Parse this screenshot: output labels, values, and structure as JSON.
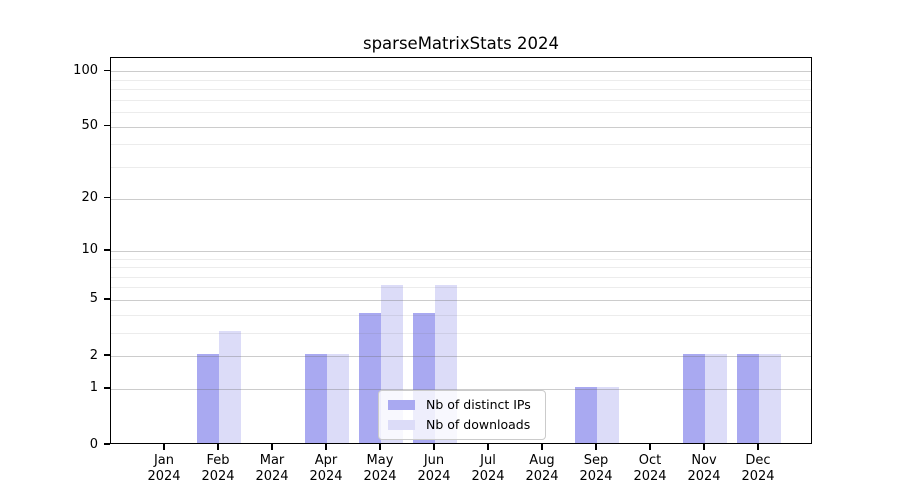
{
  "chart_data": {
    "type": "bar",
    "title": "sparseMatrixStats 2024",
    "categories": [
      "Jan",
      "Feb",
      "Mar",
      "Apr",
      "May",
      "Jun",
      "Jul",
      "Aug",
      "Sep",
      "Oct",
      "Nov",
      "Dec"
    ],
    "x_year_label": "2024",
    "series": [
      {
        "name": "Nb of distinct IPs",
        "color": "#a9a9f1",
        "values": [
          0,
          2,
          0,
          2,
          4,
          4,
          0,
          0,
          1,
          0,
          2,
          2
        ]
      },
      {
        "name": "Nb of downloads",
        "color": "#dcdcf8",
        "values": [
          0,
          3,
          0,
          2,
          6,
          6,
          0,
          0,
          1,
          0,
          2,
          2
        ]
      }
    ],
    "y_scale": "log1p",
    "ylim": [
      0,
      118
    ],
    "y_tick_values": [
      0,
      1,
      2,
      5,
      10,
      20,
      50,
      100
    ],
    "y_tick_labels": [
      "0",
      "1",
      "2",
      "5",
      "10",
      "20",
      "50",
      "100"
    ],
    "y_minor_gridlines": [
      3,
      4,
      6,
      7,
      8,
      9,
      30,
      40,
      60,
      70,
      80,
      90
    ],
    "grid": "horizontal-major-and-minor",
    "legend_position": "lower-center"
  }
}
